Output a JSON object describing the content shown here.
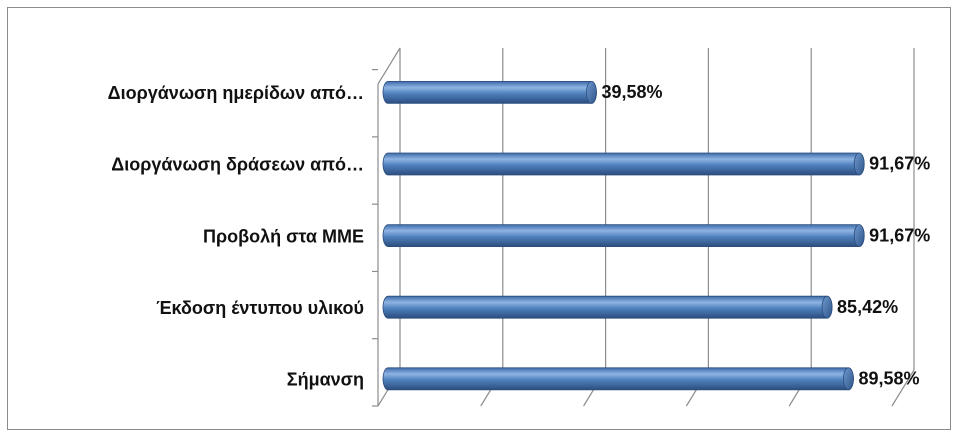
{
  "chart_data": {
    "type": "bar",
    "orientation": "horizontal",
    "style": "3d-cylinder",
    "categories": [
      "Διοργάνωση ημερίδων από…",
      "Διοργάνωση δράσεων από…",
      "Προβολή στα ΜΜΕ",
      "Έκδοση έντυπου υλικού",
      "Σήμανση"
    ],
    "values": [
      39.58,
      91.67,
      91.67,
      85.42,
      89.58
    ],
    "value_labels": [
      "39,58%",
      "91,67%",
      "91,67%",
      "85,42%",
      "89,58%"
    ],
    "xlim": [
      0,
      100
    ],
    "grid": true,
    "legend": "none",
    "bar_color": "#4f81bd"
  }
}
